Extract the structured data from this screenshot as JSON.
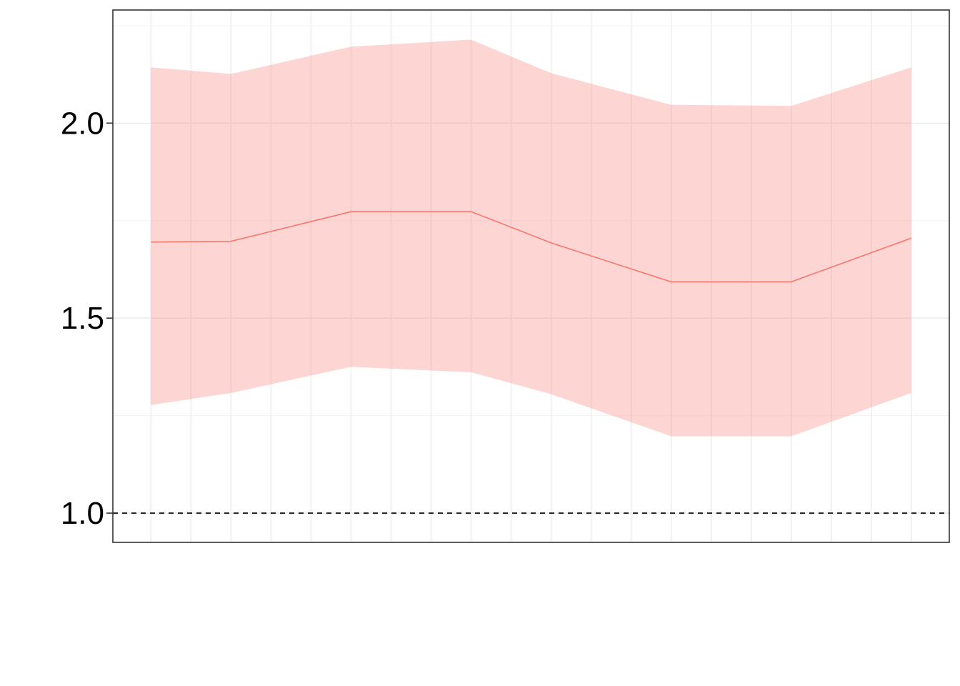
{
  "chart_data": {
    "type": "line",
    "x": [
      1,
      2,
      3,
      4,
      5,
      6,
      7,
      8,
      9,
      10,
      11,
      12,
      13,
      14,
      15,
      16,
      17,
      18,
      19,
      20
    ],
    "series": [
      {
        "values": [
          1.695,
          1.697,
          1.773,
          1.773,
          1.693,
          1.593,
          1.593,
          1.705
        ],
        "x": [
          1,
          3,
          6,
          9,
          11,
          14,
          17,
          20
        ],
        "lower": [
          1.277,
          1.308,
          1.375,
          1.361,
          1.305,
          1.197,
          1.197,
          1.308
        ],
        "upper": [
          2.143,
          2.126,
          2.196,
          2.214,
          2.128,
          2.047,
          2.044,
          2.143
        ],
        "color": "#F8766D",
        "band_color": "#F8766D",
        "band_opacity": 0.3
      }
    ],
    "reference_line": {
      "y": 1.0,
      "style": "dashed",
      "color": "#000000"
    },
    "yticks": [
      1.0,
      1.5,
      2.0
    ],
    "ytick_labels": [
      "1.0",
      "1.5",
      "2.0"
    ],
    "ylim": [
      0.925,
      2.29
    ],
    "xlim": [
      0.05,
      20.95
    ],
    "xticks_shown": false,
    "title": "",
    "xlabel": "",
    "ylabel": "",
    "grid": true,
    "legend": "none"
  }
}
